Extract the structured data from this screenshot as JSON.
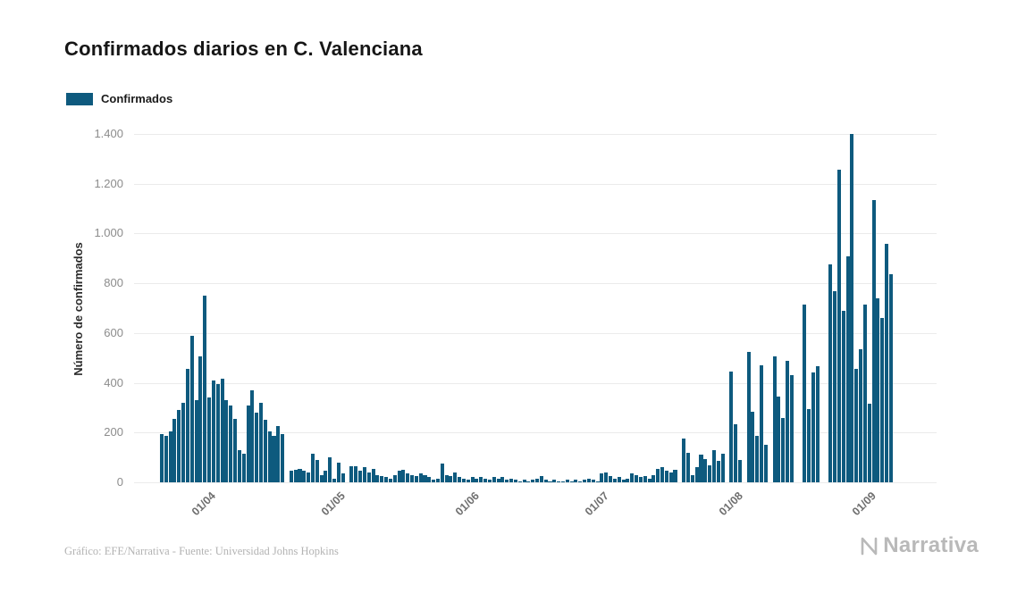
{
  "page": {
    "title": "Confirmados diarios en C. Valenciana",
    "footer_credit": "Gráfico: EFE/Narrativa - Fuente: Universidad Johns Hopkins",
    "brand": "Narrativa"
  },
  "legend": {
    "label": "Confirmados",
    "color": "#0E5A7E"
  },
  "chart_data": {
    "type": "bar",
    "title": "Confirmados diarios en C. Valenciana",
    "xlabel": "",
    "ylabel": "Número de confirmados",
    "ylim": [
      0,
      1400
    ],
    "grid": true,
    "legend_position": "top-left",
    "bar_color": "#0E5A7E",
    "y_ticks": [
      "0",
      "200",
      "400",
      "600",
      "800",
      "1.000",
      "1.200",
      "1.400"
    ],
    "y_tick_values": [
      0,
      200,
      400,
      600,
      800,
      1000,
      1200,
      1400
    ],
    "x_ticks": [
      {
        "label": "01/04",
        "index": 17
      },
      {
        "label": "01/05",
        "index": 47
      },
      {
        "label": "01/06",
        "index": 78
      },
      {
        "label": "01/07",
        "index": 108
      },
      {
        "label": "01/08",
        "index": 139
      },
      {
        "label": "01/09",
        "index": 170
      }
    ],
    "n_slots": 186,
    "values": [
      0,
      0,
      0,
      0,
      0,
      0,
      195,
      185,
      205,
      255,
      290,
      320,
      455,
      590,
      330,
      505,
      750,
      340,
      410,
      395,
      415,
      330,
      310,
      255,
      130,
      115,
      310,
      370,
      280,
      320,
      250,
      205,
      185,
      225,
      195,
      0,
      45,
      50,
      55,
      45,
      40,
      115,
      90,
      30,
      45,
      100,
      15,
      80,
      35,
      0,
      65,
      65,
      45,
      60,
      40,
      55,
      30,
      25,
      20,
      15,
      30,
      45,
      50,
      35,
      30,
      25,
      35,
      30,
      20,
      10,
      15,
      75,
      30,
      25,
      40,
      20,
      15,
      10,
      20,
      15,
      20,
      15,
      10,
      20,
      15,
      20,
      10,
      15,
      10,
      5,
      10,
      5,
      10,
      15,
      25,
      10,
      5,
      10,
      5,
      5,
      10,
      5,
      10,
      5,
      10,
      15,
      10,
      5,
      35,
      40,
      25,
      15,
      20,
      10,
      15,
      35,
      30,
      20,
      25,
      15,
      30,
      55,
      60,
      45,
      40,
      50,
      0,
      175,
      120,
      30,
      60,
      110,
      95,
      70,
      130,
      85,
      115,
      0,
      445,
      235,
      90,
      0,
      525,
      285,
      185,
      470,
      150,
      0,
      505,
      345,
      260,
      490,
      430,
      0,
      0,
      715,
      295,
      440,
      465,
      0,
      0,
      875,
      770,
      1255,
      690,
      910,
      1400,
      455,
      535,
      715,
      315,
      1135,
      740,
      660,
      960,
      835,
      0,
      0,
      0,
      0,
      0,
      0,
      0,
      0,
      0,
      0
    ]
  }
}
